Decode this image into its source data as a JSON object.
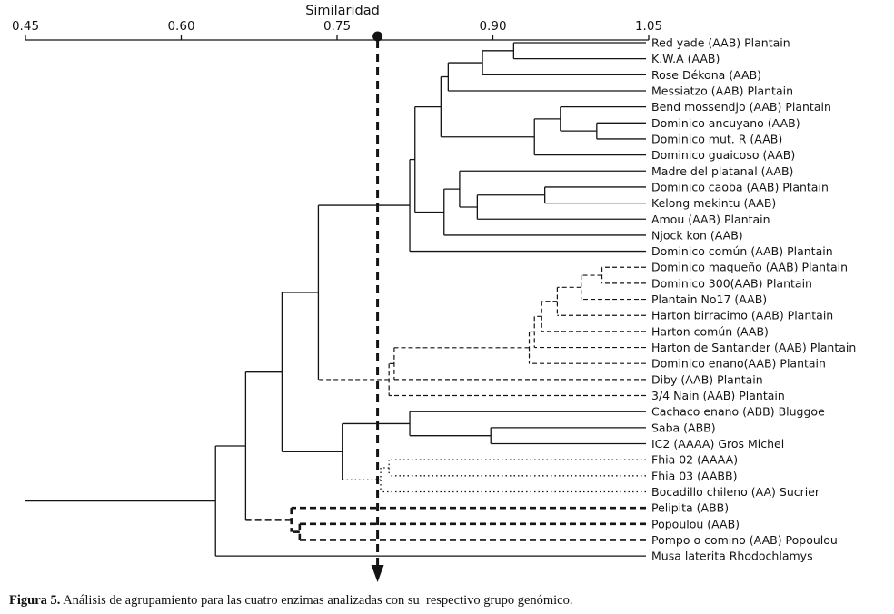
{
  "caption": {
    "label": "Figura 5.",
    "text": " Análisis de agrupamiento para las cuatro enzimas analizadas con su  respectivo grupo genómico."
  },
  "chart_data": {
    "type": "dendrogram",
    "title": "Similaridad",
    "orientation": "leaves-right",
    "line_color": "#141414",
    "axis": {
      "min": 0.45,
      "max": 1.05,
      "position": "top",
      "tick_labels": [
        "0.45",
        "0.60",
        "0.75",
        "0.90",
        "1.05"
      ]
    },
    "cut_line": {
      "value": 0.789,
      "style": "bold-dashed",
      "top_marker": "filled-circle",
      "bottom_marker": "arrow-down"
    },
    "root_extends_to": 0.45,
    "leaves": [
      {
        "label": "Red yade (AAB) Plantain",
        "style": "solid"
      },
      {
        "label": "K.W.A (AAB)",
        "style": "solid"
      },
      {
        "label": "Rose Dékona (AAB)",
        "style": "solid"
      },
      {
        "label": "Messiatzo (AAB) Plantain",
        "style": "solid"
      },
      {
        "label": "Bend mossendjo (AAB) Plantain",
        "style": "solid"
      },
      {
        "label": "Dominico ancuyano (AAB)",
        "style": "solid"
      },
      {
        "label": "Dominico mut. R (AAB)",
        "style": "solid"
      },
      {
        "label": "Dominico guaicoso (AAB)",
        "style": "solid"
      },
      {
        "label": "Madre del platanal (AAB)",
        "style": "solid"
      },
      {
        "label": "Dominico caoba (AAB) Plantain",
        "style": "solid"
      },
      {
        "label": "Kelong mekintu (AAB)",
        "style": "solid"
      },
      {
        "label": "Amou (AAB) Plantain",
        "style": "solid"
      },
      {
        "label": "Njock kon (AAB)",
        "style": "solid"
      },
      {
        "label": "Dominico común (AAB) Plantain",
        "style": "solid"
      },
      {
        "label": "Dominico maqueño (AAB) Plantain",
        "style": "dashed"
      },
      {
        "label": "Dominico 300(AAB) Plantain",
        "style": "dashed"
      },
      {
        "label": "Plantain No17 (AAB)",
        "style": "dashed"
      },
      {
        "label": "Harton birracimo (AAB) Plantain",
        "style": "dashed"
      },
      {
        "label": "Harton común (AAB)",
        "style": "dashed"
      },
      {
        "label": "Harton de Santander (AAB) Plantain",
        "style": "dashed"
      },
      {
        "label": "Dominico enano(AAB) Plantain",
        "style": "dashed"
      },
      {
        "label": "Diby (AAB) Plantain",
        "style": "dashed"
      },
      {
        "label": "3/4 Nain (AAB) Plantain",
        "style": "dashed"
      },
      {
        "label": "Cachaco enano (ABB) Bluggoe",
        "style": "solid"
      },
      {
        "label": "Saba (ABB)",
        "style": "solid"
      },
      {
        "label": "IC2  (AAAA) Gros Michel",
        "style": "solid"
      },
      {
        "label": "Fhia 02 (AAAA)",
        "style": "dotted"
      },
      {
        "label": "Fhia 03 (AABB)",
        "style": "dotted"
      },
      {
        "label": "Bocadillo chileno (AA) Sucrier",
        "style": "dotted"
      },
      {
        "label": "Pelipita (ABB)",
        "style": "bold-dashed"
      },
      {
        "label": "Popoulou (AAB)",
        "style": "bold-dashed"
      },
      {
        "label": "Pompo o comino (AAB) Popoulou",
        "style": "bold-dashed"
      },
      {
        "label": "Musa laterita Rhodochlamys",
        "style": "solid"
      }
    ],
    "merges": [
      {
        "a": "L0",
        "b": "L1",
        "h": 0.92,
        "style": "solid"
      },
      {
        "a": "M0",
        "b": "L2",
        "h": 0.89,
        "style": "solid"
      },
      {
        "a": "L5",
        "b": "L6",
        "h": 1.0,
        "style": "solid"
      },
      {
        "a": "L4",
        "b": "M2",
        "h": 0.965,
        "style": "solid"
      },
      {
        "a": "M3",
        "b": "L7",
        "h": 0.94,
        "style": "solid"
      },
      {
        "a": "M1",
        "b": "L3",
        "h": 0.857,
        "style": "solid"
      },
      {
        "a": "M5",
        "b": "M4",
        "h": 0.85,
        "style": "solid"
      },
      {
        "a": "L9",
        "b": "L10",
        "h": 0.95,
        "style": "solid"
      },
      {
        "a": "M7",
        "b": "L11",
        "h": 0.885,
        "style": "solid"
      },
      {
        "a": "L8",
        "b": "M8",
        "h": 0.868,
        "style": "solid"
      },
      {
        "a": "M9",
        "b": "L12",
        "h": 0.853,
        "style": "solid"
      },
      {
        "a": "M6",
        "b": "M10",
        "h": 0.825,
        "style": "solid"
      },
      {
        "a": "M11",
        "b": "L13",
        "h": 0.82,
        "style": "solid"
      },
      {
        "a": "L14",
        "b": "L15",
        "h": 1.005,
        "style": "dashed"
      },
      {
        "a": "M13",
        "b": "L16",
        "h": 0.985,
        "style": "dashed"
      },
      {
        "a": "M14",
        "b": "L17",
        "h": 0.962,
        "style": "dashed"
      },
      {
        "a": "M15",
        "b": "L18",
        "h": 0.947,
        "style": "dashed"
      },
      {
        "a": "M16",
        "b": "L19",
        "h": 0.94,
        "style": "dashed"
      },
      {
        "a": "M17",
        "b": "L20",
        "h": 0.935,
        "style": "dashed"
      },
      {
        "a": "M18",
        "b": "L21",
        "h": 0.805,
        "style": "dashed"
      },
      {
        "a": "M19",
        "b": "L22",
        "h": 0.8,
        "style": "dashed"
      },
      {
        "a": "M12",
        "b": "M20",
        "h": 0.732,
        "style": "solid"
      },
      {
        "a": "L24",
        "b": "L25",
        "h": 0.898,
        "style": "solid"
      },
      {
        "a": "L23",
        "b": "M22",
        "h": 0.82,
        "style": "solid"
      },
      {
        "a": "L26",
        "b": "L27",
        "h": 0.8,
        "style": "dotted"
      },
      {
        "a": "M24",
        "b": "L28",
        "h": 0.792,
        "style": "dotted"
      },
      {
        "a": "M23",
        "b": "M25",
        "h": 0.755,
        "style": "solid"
      },
      {
        "a": "M21",
        "b": "M26",
        "h": 0.697,
        "style": "solid"
      },
      {
        "a": "L30",
        "b": "L31",
        "h": 0.714,
        "style": "bold-dashed"
      },
      {
        "a": "L29",
        "b": "M28",
        "h": 0.706,
        "style": "bold-dashed"
      },
      {
        "a": "M27",
        "b": "M29",
        "h": 0.662,
        "style": "solid"
      },
      {
        "a": "M30",
        "b": "L32",
        "h": 0.633,
        "style": "solid"
      }
    ]
  }
}
